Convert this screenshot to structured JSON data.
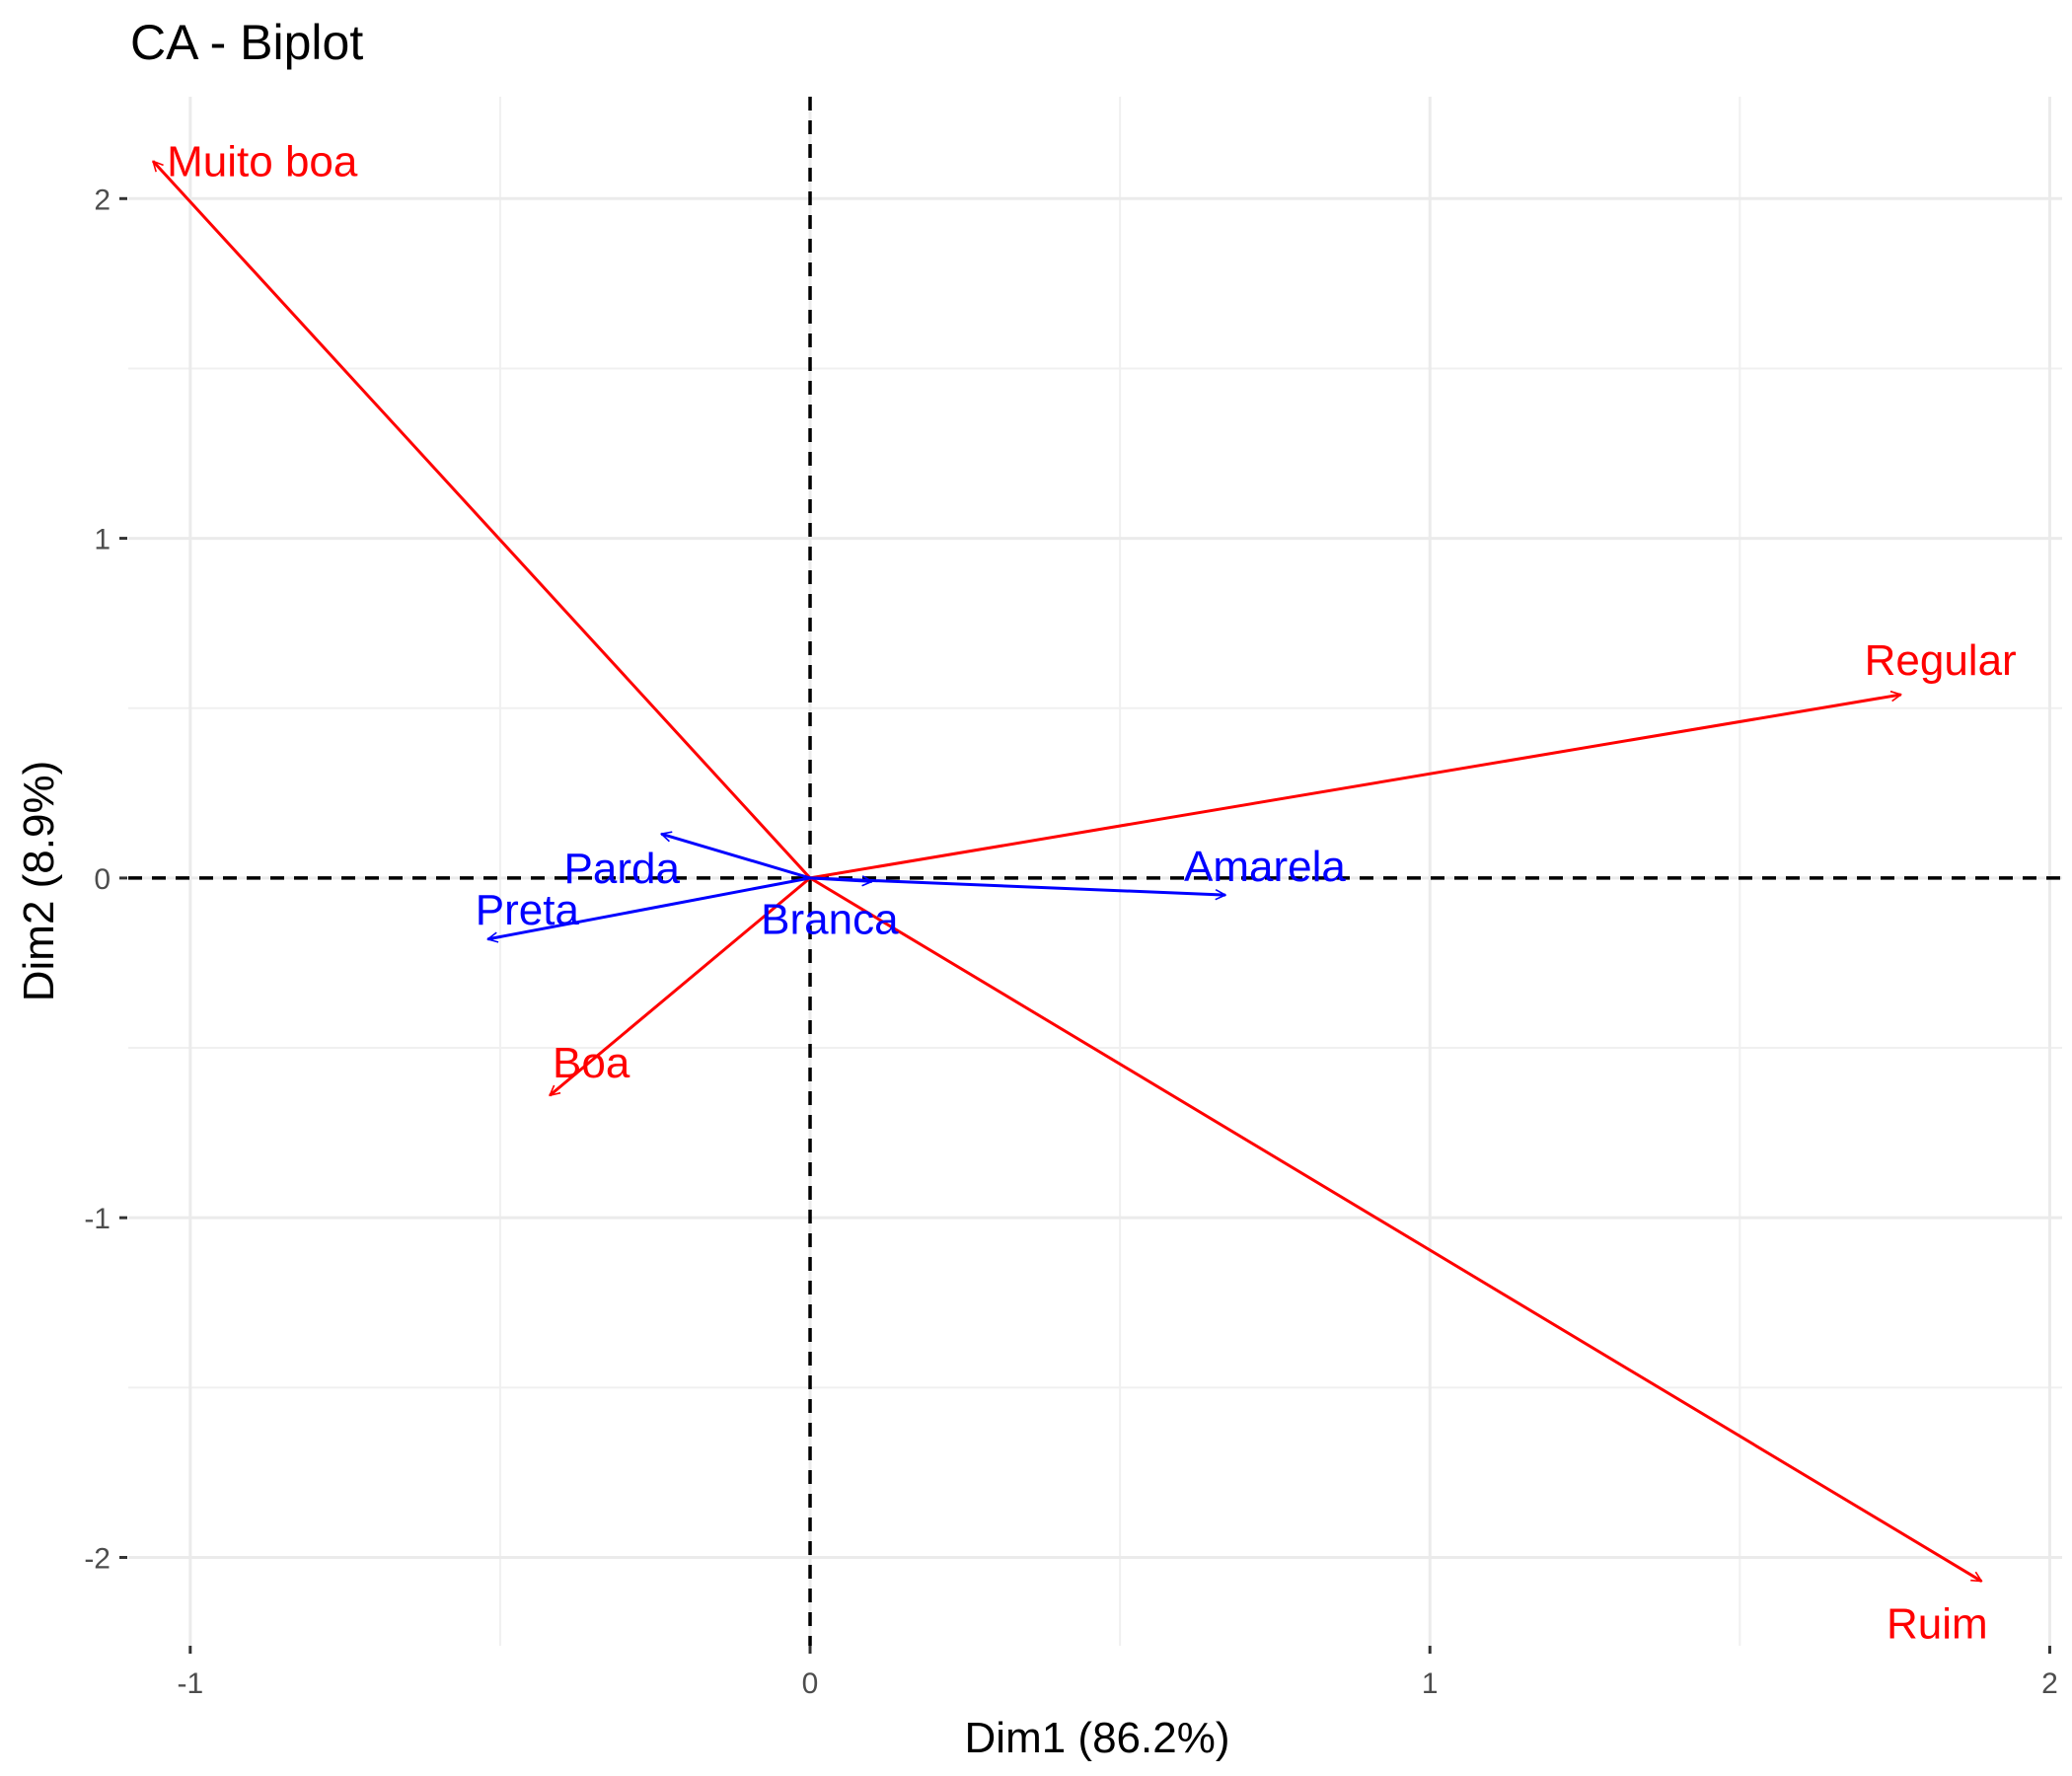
{
  "chart_data": {
    "type": "scatter",
    "title": "CA - Biplot",
    "xlabel": "Dim1 (86.2%)",
    "ylabel": "Dim2 (8.9%)",
    "xlim": [
      -1.1,
      2.02
    ],
    "ylim": [
      -2.26,
      2.3
    ],
    "x_ticks": [
      -1,
      0,
      1,
      2
    ],
    "x_tick_labels": [
      "-1",
      "0",
      "1",
      "2"
    ],
    "y_ticks": [
      -2,
      -1,
      0,
      1,
      2
    ],
    "y_tick_labels": [
      "-2",
      "-1",
      "0",
      "1",
      "2"
    ],
    "grid": true,
    "reference_lines": "dashed at x=0 and y=0",
    "series": [
      {
        "group": "columns",
        "color": "#ff0000",
        "points": [
          {
            "label": "Muito boa",
            "x": -1.06,
            "y": 2.11
          },
          {
            "label": "Regular",
            "x": 1.76,
            "y": 0.54
          },
          {
            "label": "Boa",
            "x": -0.42,
            "y": -0.64
          },
          {
            "label": "Ruim",
            "x": 1.89,
            "y": -2.07
          }
        ]
      },
      {
        "group": "rows",
        "color": "#0000ff",
        "points": [
          {
            "label": "Parda",
            "x": -0.24,
            "y": 0.13
          },
          {
            "label": "Preta",
            "x": -0.52,
            "y": -0.18
          },
          {
            "label": "Branca",
            "x": 0.1,
            "y": -0.01
          },
          {
            "label": "Amarela",
            "x": 0.67,
            "y": -0.05
          }
        ]
      }
    ]
  }
}
